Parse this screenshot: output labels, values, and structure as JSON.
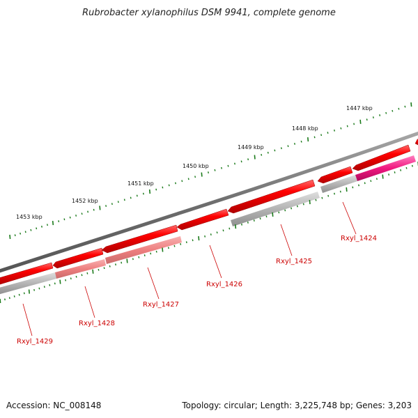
{
  "title": "Rubrobacter xylanophilus DSM 9941, complete genome",
  "accession": "Accession: NC_008148",
  "summary": "Topology: circular; Length: 3,225,748 bp; Genes: 3,203",
  "colors": {
    "backbone": "#7a7a7a",
    "gene": "#ee0000",
    "gene_light": "#f07a7a",
    "feature": "#aaaaaa",
    "feature_pink": "#f0187f",
    "tick": "#1a7a1a",
    "label": "#cc0000"
  },
  "ruler": {
    "labels": [
      "1447 kbp",
      "1448 kbp",
      "1449 kbp",
      "1450 kbp",
      "1451 kbp",
      "1452 kbp",
      "1453 kbp"
    ]
  },
  "genes": [
    {
      "label": "Rxyl_1424"
    },
    {
      "label": "Rxyl_1425"
    },
    {
      "label": "Rxyl_1426"
    },
    {
      "label": "Rxyl_1427"
    },
    {
      "label": "Rxyl_1428"
    },
    {
      "label": "Rxyl_1429"
    }
  ]
}
